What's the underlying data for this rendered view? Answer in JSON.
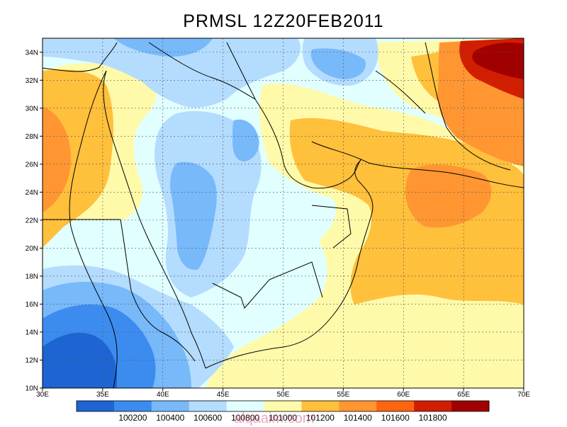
{
  "title": "PRMSL  12Z20FEB2011",
  "lon_ticks": [
    "30E",
    "35E",
    "40E",
    "45E",
    "50E",
    "55E",
    "60E",
    "65E",
    "70E"
  ],
  "lat_ticks": [
    "10N",
    "12N",
    "14N",
    "16N",
    "18N",
    "20N",
    "22N",
    "24N",
    "26N",
    "28N",
    "30N",
    "32N",
    "34N"
  ],
  "colorbar": {
    "labels": [
      "100200",
      "100400",
      "100600",
      "100800",
      "101000",
      "101200",
      "101400",
      "101600",
      "101800"
    ],
    "colors": [
      "#1e64d2",
      "#3c8cf0",
      "#78b9fa",
      "#b4dcff",
      "#e1ffff",
      "#fffaaa",
      "#ffc03c",
      "#ff9632",
      "#ff6410",
      "#d21e00",
      "#a00000"
    ]
  },
  "watermark": "alqaaim.com"
}
